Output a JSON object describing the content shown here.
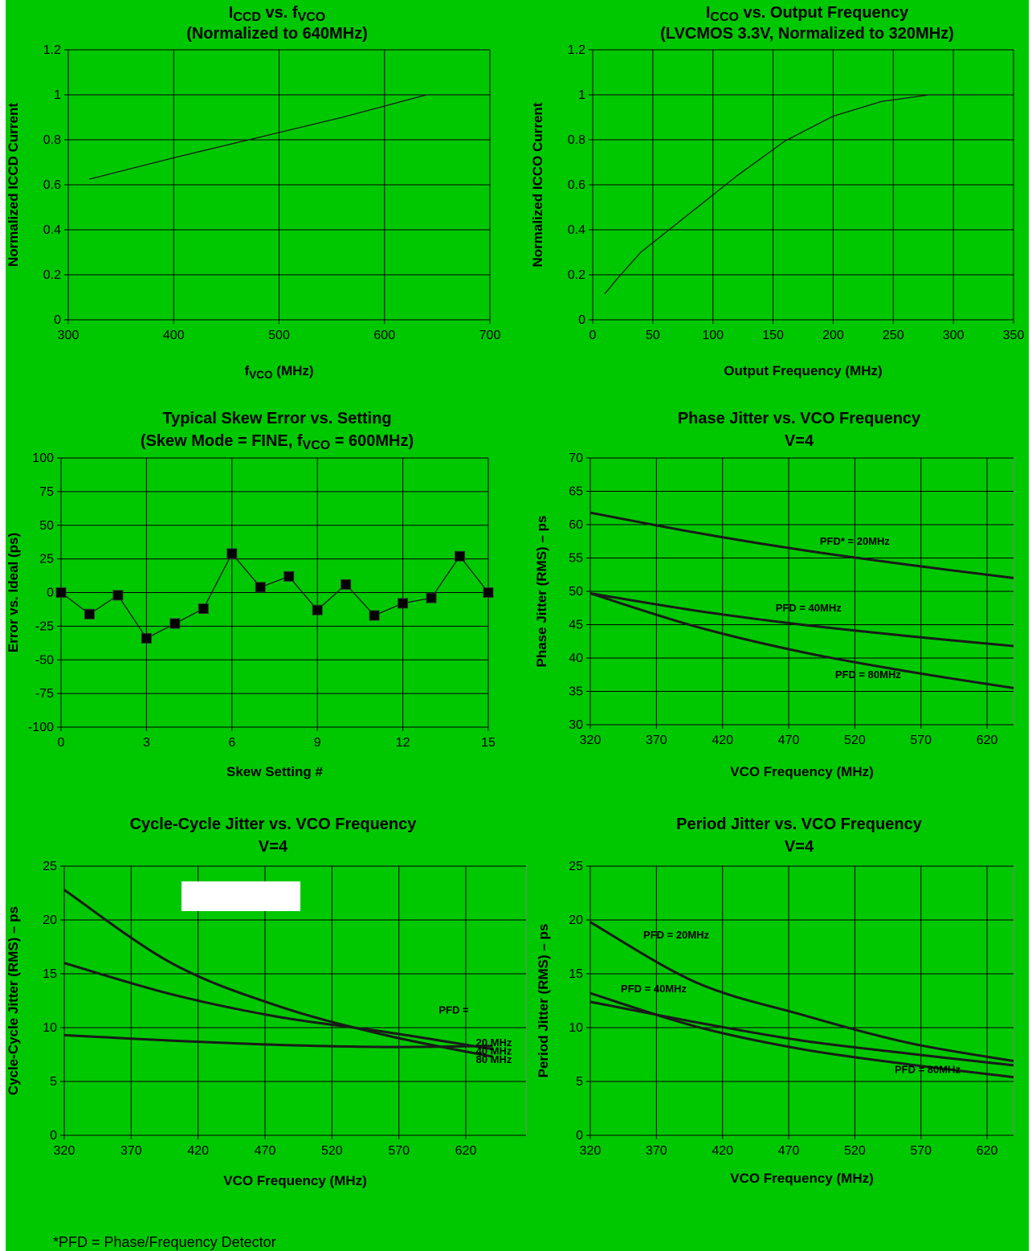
{
  "chart_data": [
    {
      "id": "icc_fvco",
      "type": "line",
      "title_parts": [
        [
          "I",
          ""
        ],
        [
          "CCD",
          "sub"
        ],
        [
          " vs. f",
          ""
        ],
        [
          "VCO",
          "sub"
        ]
      ],
      "subtitle": "(Normalized to 640MHz)",
      "xlabel_parts": [
        [
          "f",
          ""
        ],
        [
          "VCO",
          "sub"
        ],
        [
          " (MHz)",
          ""
        ]
      ],
      "ylabel": "Normalized ICCD Current",
      "xlim": [
        300,
        700
      ],
      "ylim": [
        0,
        1.2
      ],
      "xticks": [
        300,
        400,
        500,
        600,
        700
      ],
      "yticks": [
        0,
        0.2,
        0.4,
        0.6,
        0.8,
        1,
        1.2
      ],
      "grid": true,
      "series": [
        {
          "x": [
            320,
            400,
            480,
            560,
            640
          ],
          "y": [
            0.625,
            0.72,
            0.81,
            0.9,
            1.0
          ]
        }
      ]
    },
    {
      "id": "icco_fout",
      "type": "line",
      "title_parts": [
        [
          "I",
          ""
        ],
        [
          "CCO",
          "sub"
        ],
        [
          " vs. Output Frequency",
          ""
        ]
      ],
      "subtitle": "(LVCMOS 3.3V, Normalized to 320MHz)",
      "xlabel_parts": [
        [
          "Output Frequency (MHz)",
          ""
        ]
      ],
      "ylabel": "Normalized ICCO Current",
      "xlim": [
        0,
        350
      ],
      "ylim": [
        0,
        1.2
      ],
      "xticks": [
        0,
        50,
        100,
        150,
        200,
        250,
        300,
        350
      ],
      "ytick_labels": [
        "0",
        "0.2",
        "0.4",
        "0.6",
        "0.8",
        "1",
        "1.2"
      ],
      "yticks": [
        0,
        0.2,
        0.4,
        0.6,
        0.8,
        1,
        1.2
      ],
      "grid": true,
      "series": [
        {
          "x": [
            10,
            20,
            40,
            80,
            120,
            160,
            200,
            240,
            280,
            320
          ],
          "y": [
            0.115,
            0.18,
            0.3,
            0.47,
            0.64,
            0.795,
            0.905,
            0.97,
            1.0,
            1.0
          ]
        }
      ]
    },
    {
      "id": "skew",
      "type": "line",
      "title_parts": [
        [
          "Typical Skew Error vs. Setting",
          ""
        ]
      ],
      "subtitle_parts": [
        [
          "(Skew Mode = FINE, f",
          ""
        ],
        [
          "VCO",
          "sub"
        ],
        [
          " = 600MHz)",
          ""
        ]
      ],
      "xlabel_parts": [
        [
          "Skew Setting #",
          ""
        ]
      ],
      "ylabel": "Error vs. Ideal (ps)",
      "xlim": [
        0,
        15
      ],
      "ylim": [
        -100,
        100
      ],
      "xticks": [
        0,
        3,
        6,
        9,
        12,
        15
      ],
      "yticks": [
        -100,
        -75,
        -50,
        -25,
        0,
        25,
        50,
        75,
        100
      ],
      "grid": true,
      "markers": "square",
      "series": [
        {
          "x": [
            0,
            1,
            2,
            3,
            4,
            5,
            6,
            7,
            8,
            9,
            10,
            11,
            12,
            13,
            14,
            15
          ],
          "y": [
            0,
            -16,
            -2,
            -34,
            -23,
            -12,
            29,
            4,
            12,
            -13,
            6,
            -17,
            -8,
            -4,
            27,
            0
          ]
        }
      ]
    },
    {
      "id": "phase_jitter",
      "type": "line",
      "title_parts": [
        [
          "Phase Jitter vs. VCO Frequency",
          ""
        ]
      ],
      "subtitle": "V=4",
      "xlabel_parts": [
        [
          "VCO Frequency (MHz)",
          ""
        ]
      ],
      "ylabel": "Phase Jitter (RMS) – ps",
      "xlim": [
        320,
        640
      ],
      "ylim": [
        30,
        70
      ],
      "xticks": [
        320,
        370,
        420,
        470,
        520,
        570,
        620
      ],
      "yticks": [
        30,
        35,
        40,
        45,
        50,
        55,
        60,
        65,
        70
      ],
      "grid": true,
      "series": [
        {
          "x": [
            320,
            400,
            480,
            560,
            640
          ],
          "y": [
            61.8,
            58.8,
            56.2,
            54,
            52
          ]
        },
        {
          "x": [
            320,
            400,
            480,
            560,
            640
          ],
          "y": [
            49.7,
            47.1,
            45,
            43.3,
            41.8
          ]
        },
        {
          "x": [
            320,
            400,
            480,
            560,
            640
          ],
          "y": [
            49.7,
            44.7,
            40.9,
            38,
            35.5
          ]
        }
      ],
      "annotations": [
        {
          "text": "PFD* = 20MHz",
          "x": 520,
          "y": 57
        },
        {
          "text": "PFD = 40MHz",
          "x": 485,
          "y": 47
        },
        {
          "text": "PFD = 80MHz",
          "x": 530,
          "y": 37
        }
      ]
    },
    {
      "id": "cc_jitter",
      "type": "line",
      "title_parts": [
        [
          "Cycle-Cycle Jitter vs. VCO Frequency",
          ""
        ]
      ],
      "subtitle": "V=4",
      "xlabel_parts": [
        [
          "VCO Frequency (MHz)",
          ""
        ]
      ],
      "ylabel": "Cycle-Cycle Jitter (RMS) – ps",
      "xlim": [
        320,
        665
      ],
      "ylim": [
        0,
        25
      ],
      "xticks": [
        320,
        370,
        420,
        470,
        520,
        570,
        620
      ],
      "yticks": [
        0,
        5,
        10,
        15,
        20,
        25
      ],
      "grid": true,
      "series": [
        {
          "x": [
            320,
            400,
            480,
            560,
            640
          ],
          "y": [
            22.8,
            16,
            12,
            9.3,
            7.3
          ]
        },
        {
          "x": [
            320,
            400,
            480,
            560,
            640
          ],
          "y": [
            16,
            13.1,
            11,
            9.6,
            8
          ]
        },
        {
          "x": [
            320,
            400,
            480,
            560,
            640
          ],
          "y": [
            9.3,
            8.8,
            8.4,
            8.2,
            8.3
          ]
        }
      ],
      "annotations": [
        {
          "text": "PFD =",
          "x": 611,
          "y": 11.3
        },
        {
          "text": "20 MHz",
          "x": 641,
          "y": 8.3
        },
        {
          "text": "40 MHz",
          "x": 641,
          "y": 7.5
        },
        {
          "text": "80 MHz",
          "x": 641,
          "y": 6.7
        }
      ]
    },
    {
      "id": "period_jitter",
      "type": "line",
      "title_parts": [
        [
          "Period Jitter vs. VCO Frequency",
          ""
        ]
      ],
      "subtitle": "V=4",
      "xlabel_parts": [
        [
          "VCO Frequency (MHz)",
          ""
        ]
      ],
      "ylabel": "Period Jitter (RMS) – ps",
      "xlim": [
        320,
        640
      ],
      "ylim": [
        0,
        25
      ],
      "xticks": [
        320,
        370,
        420,
        470,
        520,
        570,
        620
      ],
      "yticks": [
        0,
        5,
        10,
        15,
        20,
        25
      ],
      "grid": true,
      "series": [
        {
          "x": [
            320,
            400,
            480,
            560,
            640
          ],
          "y": [
            19.8,
            14.2,
            11.2,
            8.6,
            6.9
          ]
        },
        {
          "x": [
            320,
            400,
            480,
            560,
            640
          ],
          "y": [
            13.2,
            10.1,
            8,
            6.6,
            5.4
          ]
        },
        {
          "x": [
            320,
            400,
            480,
            560,
            640
          ],
          "y": [
            12.4,
            10.5,
            8.8,
            7.6,
            6.5
          ]
        }
      ],
      "annotations": [
        {
          "text": "PFD = 20MHz",
          "x": 385,
          "y": 18.3
        },
        {
          "text": "PFD = 40MHz",
          "x": 368,
          "y": 13.3
        },
        {
          "text": "PFD = 80MHz",
          "x": 575,
          "y": 5.8
        }
      ]
    }
  ],
  "footnote": "*PFD = Phase/Frequency Detector"
}
